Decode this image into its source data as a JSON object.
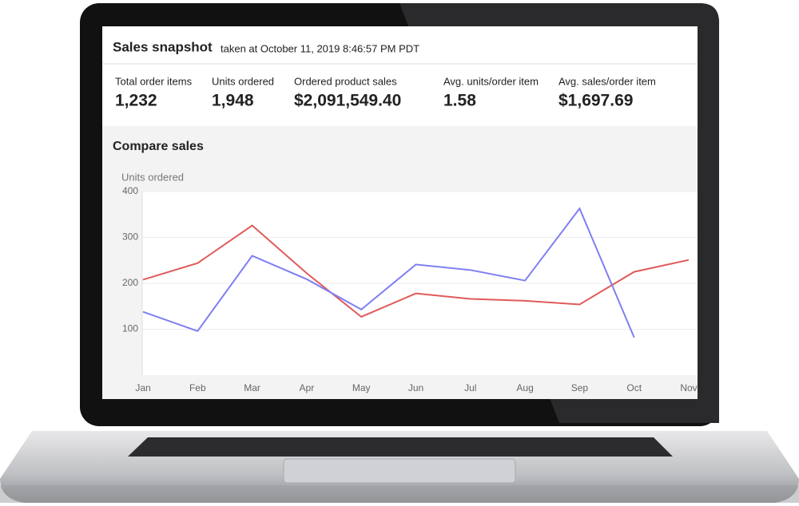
{
  "header": {
    "title": "Sales snapshot",
    "subtitle": "taken at October 11, 2019 8:46:57 PM PDT"
  },
  "metrics": [
    {
      "label": "Total order items",
      "value": "1,232"
    },
    {
      "label": "Units ordered",
      "value": "1,948"
    },
    {
      "label": "Ordered product sales",
      "value": "$2,091,549.40"
    },
    {
      "label": "Avg. units/order item",
      "value": "1.58"
    },
    {
      "label": "Avg. sales/order item",
      "value": "$1,697.69"
    }
  ],
  "chart_data": {
    "type": "line",
    "title": "Compare sales",
    "y_label": "Units ordered",
    "categories": [
      "Jan",
      "Feb",
      "Mar",
      "Apr",
      "May",
      "Jun",
      "Jul",
      "Aug",
      "Sep",
      "Oct",
      "Nov"
    ],
    "series": [
      {
        "color": "#e05a5a",
        "values": [
          208,
          244,
          326,
          222,
          127,
          178,
          166,
          162,
          154,
          225,
          251
        ]
      },
      {
        "color": "#7f7ff2",
        "values": [
          138,
          96,
          260,
          209,
          143,
          241,
          229,
          206,
          363,
          82,
          null
        ]
      }
    ],
    "ylim": [
      0,
      400
    ],
    "yticks": [
      100,
      200,
      300,
      400
    ],
    "grid": true
  }
}
